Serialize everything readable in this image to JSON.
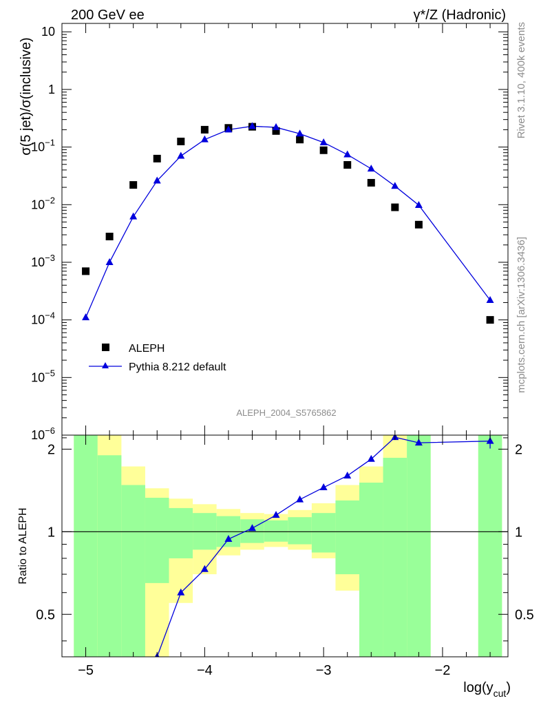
{
  "header": {
    "left_title": "200 GeV ee",
    "right_title": "γ*/Z (Hadronic)"
  },
  "side_labels": {
    "rivet": "Rivet 3.1.10,  400k events",
    "mcplots": "mcplots.cern.ch [arXiv:1306.3436]"
  },
  "watermark": "ALEPH_2004_S5765862",
  "colors": {
    "data": "#000000",
    "mc": "#0000dd",
    "band_inner": "#99ff99",
    "band_outer": "#ffff99"
  },
  "chart_data": [
    {
      "type": "scatter",
      "title": "200 GeV ee",
      "ylabel": "σ(5 jet)/σ(inclusive)",
      "xlabel": "log(y_cut)",
      "xlim": [
        -5.2,
        -1.45
      ],
      "ylim": [
        1e-06,
        14
      ],
      "yscale": "log",
      "ytick_labels": [
        "10^-6",
        "10^-5",
        "10^-4",
        "10^-3",
        "10^-2",
        "10^-1",
        "1",
        "10"
      ],
      "legend_position": "bottom-left",
      "series": [
        {
          "name": "ALEPH",
          "marker": "square",
          "x": [
            -5.0,
            -4.8,
            -4.6,
            -4.4,
            -4.2,
            -4.0,
            -3.8,
            -3.6,
            -3.4,
            -3.2,
            -3.0,
            -2.8,
            -2.6,
            -2.4,
            -2.2,
            -1.6
          ],
          "y": [
            0.0007,
            0.0028,
            0.022,
            0.063,
            0.125,
            0.2,
            0.215,
            0.225,
            0.19,
            0.135,
            0.088,
            0.049,
            0.024,
            0.009,
            0.0045,
            0.0001
          ]
        },
        {
          "name": "Pythia 8.212 default",
          "marker": "triangle",
          "x": [
            -5.0,
            -4.8,
            -4.6,
            -4.4,
            -4.2,
            -4.0,
            -3.8,
            -3.6,
            -3.4,
            -3.2,
            -3.0,
            -2.8,
            -2.6,
            -2.4,
            -2.2,
            -1.6
          ],
          "y": [
            0.00011,
            0.001,
            0.0062,
            0.026,
            0.07,
            0.135,
            0.2,
            0.23,
            0.22,
            0.17,
            0.12,
            0.074,
            0.042,
            0.021,
            0.0098,
            0.00022
          ]
        }
      ]
    },
    {
      "type": "line",
      "ylabel": "Ratio to ALEPH",
      "xlabel": "log(y_cut)",
      "xlim": [
        -5.2,
        -1.45
      ],
      "ylim": [
        0.35,
        2.25
      ],
      "x_tick_labels": [
        "−5",
        "−4",
        "−3",
        "−2"
      ],
      "x_tick_values": [
        -5,
        -4,
        -3,
        -2
      ],
      "y_tick_labels": [
        "0.5",
        "1",
        "2"
      ],
      "y_tick_values": [
        0.5,
        1,
        2
      ],
      "reference_line": 1,
      "bands": [
        {
          "x0": -5.1,
          "x1": -4.9,
          "inner": [
            0.3,
            2.3
          ],
          "outer": [
            0.3,
            2.3
          ]
        },
        {
          "x0": -4.9,
          "x1": -4.7,
          "inner": [
            0.3,
            1.9
          ],
          "outer": [
            0.3,
            2.3
          ]
        },
        {
          "x0": -4.7,
          "x1": -4.5,
          "inner": [
            0.3,
            1.48
          ],
          "outer": [
            0.3,
            1.73
          ]
        },
        {
          "x0": -4.5,
          "x1": -4.3,
          "inner": [
            0.65,
            1.33
          ],
          "outer": [
            0.3,
            1.44
          ]
        },
        {
          "x0": -4.3,
          "x1": -4.1,
          "inner": [
            0.8,
            1.22
          ],
          "outer": [
            0.55,
            1.32
          ]
        },
        {
          "x0": -4.1,
          "x1": -3.9,
          "inner": [
            0.86,
            1.17
          ],
          "outer": [
            0.7,
            1.26
          ]
        },
        {
          "x0": -3.9,
          "x1": -3.7,
          "inner": [
            0.88,
            1.14
          ],
          "outer": [
            0.82,
            1.21
          ]
        },
        {
          "x0": -3.7,
          "x1": -3.5,
          "inner": [
            0.91,
            1.11
          ],
          "outer": [
            0.86,
            1.17
          ]
        },
        {
          "x0": -3.5,
          "x1": -3.3,
          "inner": [
            0.92,
            1.1
          ],
          "outer": [
            0.88,
            1.16
          ]
        },
        {
          "x0": -3.3,
          "x1": -3.1,
          "inner": [
            0.9,
            1.13
          ],
          "outer": [
            0.86,
            1.2
          ]
        },
        {
          "x0": -3.1,
          "x1": -2.9,
          "inner": [
            0.84,
            1.17
          ],
          "outer": [
            0.8,
            1.27
          ]
        },
        {
          "x0": -2.9,
          "x1": -2.7,
          "inner": [
            0.7,
            1.3
          ],
          "outer": [
            0.61,
            1.48
          ]
        },
        {
          "x0": -2.7,
          "x1": -2.5,
          "inner": [
            0.3,
            1.51
          ],
          "outer": [
            0.3,
            1.73
          ]
        },
        {
          "x0": -2.5,
          "x1": -2.3,
          "inner": [
            0.3,
            1.86
          ],
          "outer": [
            0.3,
            2.3
          ]
        },
        {
          "x0": -2.3,
          "x1": -2.1,
          "inner": [
            0.3,
            2.3
          ],
          "outer": [
            0.3,
            2.3
          ]
        },
        {
          "x0": -1.7,
          "x1": -1.5,
          "inner": [
            0.3,
            2.3
          ],
          "outer": [
            0.3,
            2.3
          ]
        }
      ],
      "series": [
        {
          "name": "Pythia 8.212 default / ALEPH",
          "marker": "triangle",
          "x": [
            -4.4,
            -4.2,
            -4.0,
            -3.8,
            -3.6,
            -3.4,
            -3.2,
            -3.0,
            -2.8,
            -2.6,
            -2.4,
            -2.2,
            -1.6
          ],
          "y": [
            0.35,
            0.6,
            0.73,
            0.94,
            1.03,
            1.15,
            1.31,
            1.45,
            1.6,
            1.84,
            2.21,
            2.11,
            2.14
          ]
        }
      ]
    }
  ]
}
